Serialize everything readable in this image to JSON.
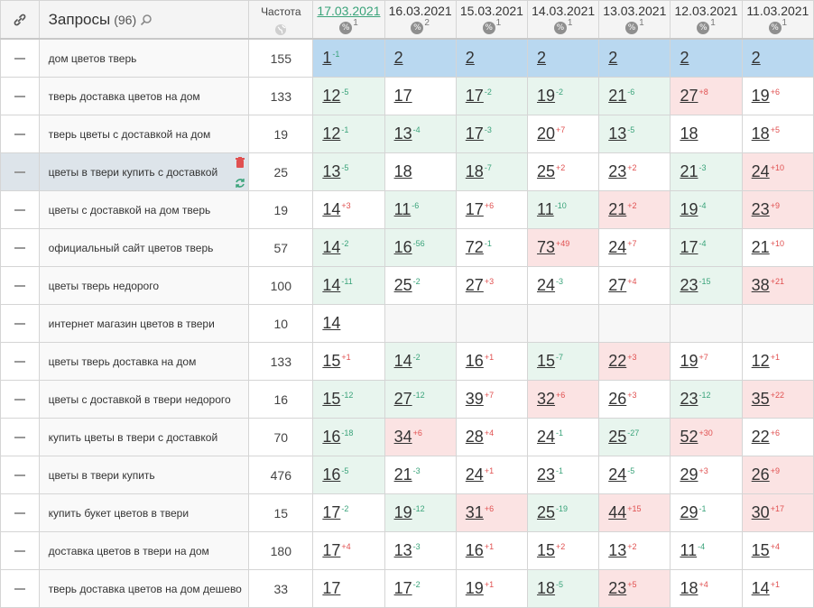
{
  "header": {
    "queries_title": "Запросы",
    "queries_count": "(96)",
    "freq_label": "Частота",
    "dates": [
      {
        "label": "17.03.2021",
        "pct": "1",
        "active": true
      },
      {
        "label": "16.03.2021",
        "pct": "2",
        "active": false
      },
      {
        "label": "15.03.2021",
        "pct": "1",
        "active": false
      },
      {
        "label": "14.03.2021",
        "pct": "1",
        "active": false
      },
      {
        "label": "13.03.2021",
        "pct": "1",
        "active": false
      },
      {
        "label": "12.03.2021",
        "pct": "1",
        "active": false
      },
      {
        "label": "11.03.2021",
        "pct": "1",
        "active": false
      }
    ]
  },
  "rows": [
    {
      "query": "дом цветов тверь",
      "freq": "155",
      "cells": [
        [
          "1",
          "-1",
          "b"
        ],
        [
          "2",
          "",
          "b"
        ],
        [
          "2",
          "",
          "b"
        ],
        [
          "2",
          "",
          "b"
        ],
        [
          "2",
          "",
          "b"
        ],
        [
          "2",
          "",
          "b"
        ],
        [
          "2",
          "",
          "b"
        ]
      ]
    },
    {
      "query": "тверь доставка цветов на дом",
      "freq": "133",
      "cells": [
        [
          "12",
          "-5",
          "g"
        ],
        [
          "17",
          "",
          "w"
        ],
        [
          "17",
          "-2",
          "g"
        ],
        [
          "19",
          "-2",
          "g"
        ],
        [
          "21",
          "-6",
          "g"
        ],
        [
          "27",
          "+8",
          "r"
        ],
        [
          "19",
          "+6",
          "w"
        ]
      ]
    },
    {
      "query": "тверь цветы с доставкой на дом",
      "freq": "19",
      "cells": [
        [
          "12",
          "-1",
          "g"
        ],
        [
          "13",
          "-4",
          "g"
        ],
        [
          "17",
          "-3",
          "g"
        ],
        [
          "20",
          "+7",
          "w"
        ],
        [
          "13",
          "-5",
          "g"
        ],
        [
          "18",
          "",
          "w"
        ],
        [
          "18",
          "+5",
          "w"
        ]
      ]
    },
    {
      "query": "цветы в твери купить с доставкой",
      "freq": "25",
      "selected": true,
      "cells": [
        [
          "13",
          "-5",
          "g"
        ],
        [
          "18",
          "",
          "w"
        ],
        [
          "18",
          "-7",
          "g"
        ],
        [
          "25",
          "+2",
          "w"
        ],
        [
          "23",
          "+2",
          "w"
        ],
        [
          "21",
          "-3",
          "g"
        ],
        [
          "24",
          "+10",
          "r"
        ]
      ]
    },
    {
      "query": "цветы с доставкой на дом тверь",
      "freq": "19",
      "cells": [
        [
          "14",
          "+3",
          "w"
        ],
        [
          "11",
          "-6",
          "g"
        ],
        [
          "17",
          "+6",
          "w"
        ],
        [
          "11",
          "-10",
          "g"
        ],
        [
          "21",
          "+2",
          "r"
        ],
        [
          "19",
          "-4",
          "g"
        ],
        [
          "23",
          "+9",
          "r"
        ]
      ]
    },
    {
      "query": "официальный сайт цветов тверь",
      "freq": "57",
      "cells": [
        [
          "14",
          "-2",
          "g"
        ],
        [
          "16",
          "-56",
          "g"
        ],
        [
          "72",
          "-1",
          "w"
        ],
        [
          "73",
          "+49",
          "r"
        ],
        [
          "24",
          "+7",
          "w"
        ],
        [
          "17",
          "-4",
          "g"
        ],
        [
          "21",
          "+10",
          "w"
        ]
      ]
    },
    {
      "query": "цветы тверь недорого",
      "freq": "100",
      "cells": [
        [
          "14",
          "-11",
          "g"
        ],
        [
          "25",
          "-2",
          "w"
        ],
        [
          "27",
          "+3",
          "w"
        ],
        [
          "24",
          "-3",
          "w"
        ],
        [
          "27",
          "+4",
          "w"
        ],
        [
          "23",
          "-15",
          "g"
        ],
        [
          "38",
          "+21",
          "r"
        ]
      ]
    },
    {
      "query": "интернет магазин цветов в твери",
      "freq": "10",
      "cells": [
        [
          "14",
          "",
          "w"
        ],
        [
          "",
          "",
          "e"
        ],
        [
          "",
          "",
          "e"
        ],
        [
          "",
          "",
          "e"
        ],
        [
          "",
          "",
          "e"
        ],
        [
          "",
          "",
          "e"
        ],
        [
          "",
          "",
          "e"
        ]
      ]
    },
    {
      "query": "цветы тверь доставка на дом",
      "freq": "133",
      "cells": [
        [
          "15",
          "+1",
          "w"
        ],
        [
          "14",
          "-2",
          "g"
        ],
        [
          "16",
          "+1",
          "w"
        ],
        [
          "15",
          "-7",
          "g"
        ],
        [
          "22",
          "+3",
          "r"
        ],
        [
          "19",
          "+7",
          "w"
        ],
        [
          "12",
          "+1",
          "w"
        ]
      ]
    },
    {
      "query": "цветы с доставкой в твери недорого",
      "freq": "16",
      "cells": [
        [
          "15",
          "-12",
          "g"
        ],
        [
          "27",
          "-12",
          "g"
        ],
        [
          "39",
          "+7",
          "w"
        ],
        [
          "32",
          "+6",
          "r"
        ],
        [
          "26",
          "+3",
          "w"
        ],
        [
          "23",
          "-12",
          "g"
        ],
        [
          "35",
          "+22",
          "r"
        ]
      ]
    },
    {
      "query": "купить цветы в твери с доставкой",
      "freq": "70",
      "cells": [
        [
          "16",
          "-18",
          "g"
        ],
        [
          "34",
          "+6",
          "r"
        ],
        [
          "28",
          "+4",
          "w"
        ],
        [
          "24",
          "-1",
          "w"
        ],
        [
          "25",
          "-27",
          "g"
        ],
        [
          "52",
          "+30",
          "r"
        ],
        [
          "22",
          "+6",
          "w"
        ]
      ]
    },
    {
      "query": "цветы в твери купить",
      "freq": "476",
      "cells": [
        [
          "16",
          "-5",
          "g"
        ],
        [
          "21",
          "-3",
          "w"
        ],
        [
          "24",
          "+1",
          "w"
        ],
        [
          "23",
          "-1",
          "w"
        ],
        [
          "24",
          "-5",
          "w"
        ],
        [
          "29",
          "+3",
          "w"
        ],
        [
          "26",
          "+9",
          "r"
        ]
      ]
    },
    {
      "query": "купить букет цветов в твери",
      "freq": "15",
      "cells": [
        [
          "17",
          "-2",
          "w"
        ],
        [
          "19",
          "-12",
          "g"
        ],
        [
          "31",
          "+6",
          "r"
        ],
        [
          "25",
          "-19",
          "g"
        ],
        [
          "44",
          "+15",
          "r"
        ],
        [
          "29",
          "-1",
          "w"
        ],
        [
          "30",
          "+17",
          "r"
        ]
      ]
    },
    {
      "query": "доставка цветов в твери на дом",
      "freq": "180",
      "cells": [
        [
          "17",
          "+4",
          "w"
        ],
        [
          "13",
          "-3",
          "w"
        ],
        [
          "16",
          "+1",
          "w"
        ],
        [
          "15",
          "+2",
          "w"
        ],
        [
          "13",
          "+2",
          "w"
        ],
        [
          "11",
          "-4",
          "w"
        ],
        [
          "15",
          "+4",
          "w"
        ]
      ]
    },
    {
      "query": "тверь доставка цветов на дом дешево",
      "freq": "33",
      "cells": [
        [
          "17",
          "",
          "w"
        ],
        [
          "17",
          "-2",
          "w"
        ],
        [
          "19",
          "+1",
          "w"
        ],
        [
          "18",
          "-5",
          "g"
        ],
        [
          "23",
          "+5",
          "r"
        ],
        [
          "18",
          "+4",
          "w"
        ],
        [
          "14",
          "+1",
          "w"
        ]
      ]
    }
  ]
}
